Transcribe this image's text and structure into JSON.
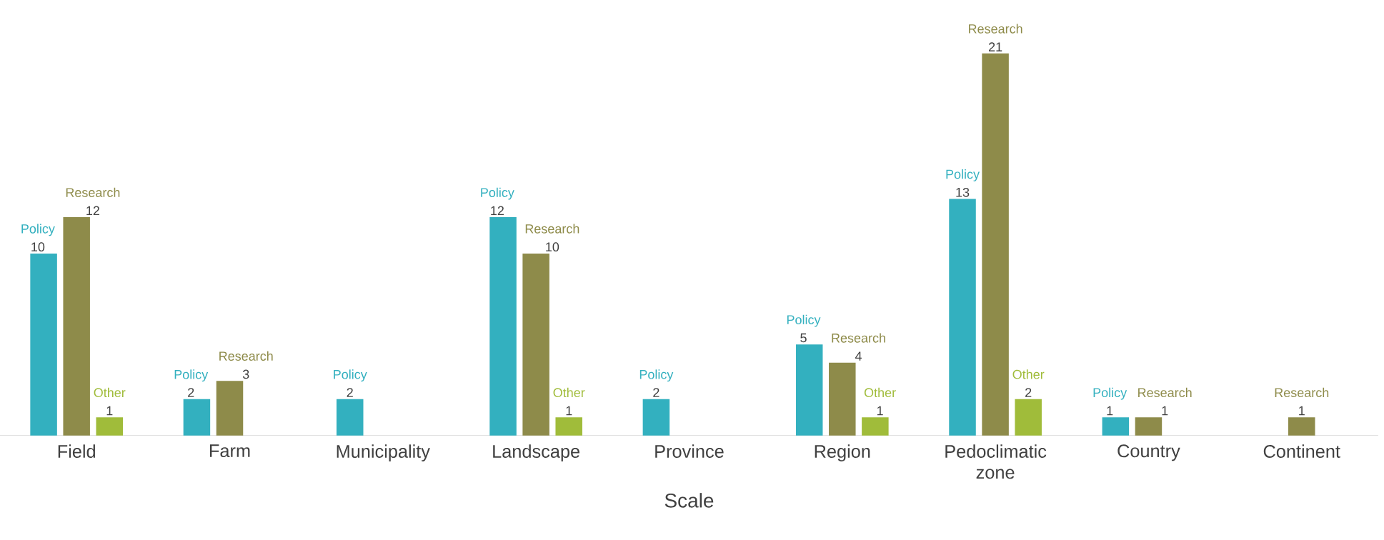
{
  "chart_data": {
    "type": "bar",
    "xlabel": "Scale",
    "categories": [
      "Field",
      "Farm",
      "Municipality",
      "Landscape",
      "Province",
      "Region",
      "Pedoclimatic zone",
      "Country",
      "Continent"
    ],
    "series": [
      {
        "name": "Policy",
        "color": "#33b0bf",
        "values": [
          10,
          2,
          2,
          12,
          2,
          5,
          13,
          1,
          null
        ]
      },
      {
        "name": "Research",
        "color": "#8e8b4a",
        "values": [
          12,
          3,
          null,
          10,
          null,
          4,
          21,
          1,
          1
        ]
      },
      {
        "name": "Other",
        "color": "#a0bc3a",
        "values": [
          1,
          null,
          null,
          1,
          null,
          1,
          2,
          null,
          null
        ]
      }
    ],
    "data_labels": true
  }
}
